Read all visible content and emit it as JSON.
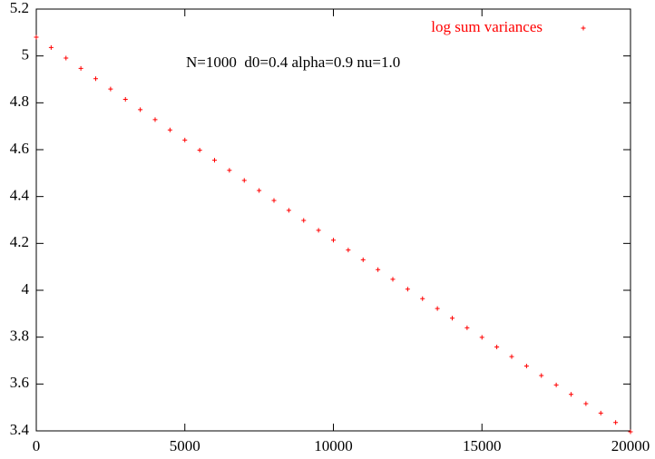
{
  "chart_data": {
    "type": "scatter",
    "annotation": "N=1000  d0=0.4 alpha=0.9 nu=1.0",
    "series": [
      {
        "name": "log sum variances",
        "color": "#ff0000",
        "x": [
          0,
          500,
          1000,
          1500,
          2000,
          2500,
          3000,
          3500,
          4000,
          4500,
          5000,
          5500,
          6000,
          6500,
          7000,
          7500,
          8000,
          8500,
          9000,
          9500,
          10000,
          10500,
          11000,
          11500,
          12000,
          12500,
          13000,
          13500,
          14000,
          14500,
          15000,
          15500,
          16000,
          16500,
          17000,
          17500,
          18000,
          18500,
          19000,
          19500,
          20000
        ],
        "values": [
          5.08,
          5.036,
          4.991,
          4.947,
          4.903,
          4.859,
          4.815,
          4.771,
          4.728,
          4.684,
          4.641,
          4.598,
          4.555,
          4.512,
          4.469,
          4.426,
          4.383,
          4.341,
          4.298,
          4.256,
          4.214,
          4.172,
          4.13,
          4.088,
          4.047,
          4.005,
          3.964,
          3.922,
          3.881,
          3.84,
          3.799,
          3.758,
          3.717,
          3.677,
          3.636,
          3.596,
          3.556,
          3.516,
          3.476,
          3.436,
          3.396
        ]
      }
    ],
    "xlim": [
      0,
      20000
    ],
    "xticks": [
      0,
      5000,
      10000,
      15000,
      20000
    ],
    "ylim": [
      3.4,
      5.2
    ],
    "yticks": [
      3.4,
      3.6,
      3.8,
      4,
      4.2,
      4.4,
      4.6,
      4.8,
      5,
      5.2
    ],
    "legend": "top-right"
  }
}
